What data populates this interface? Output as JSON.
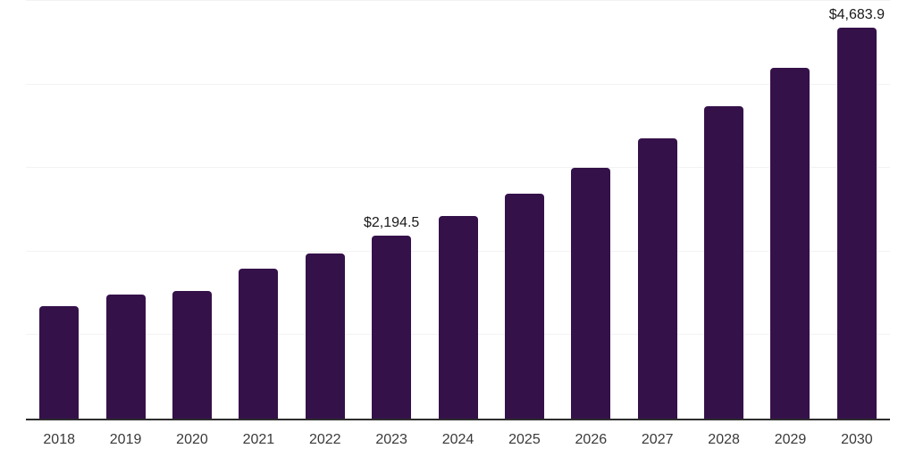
{
  "chart_data": {
    "type": "bar",
    "title": "",
    "xlabel": "",
    "ylabel": "",
    "categories": [
      "2018",
      "2019",
      "2020",
      "2021",
      "2022",
      "2023",
      "2024",
      "2025",
      "2026",
      "2027",
      "2028",
      "2029",
      "2030"
    ],
    "values": [
      1350,
      1480,
      1530,
      1795,
      1975,
      2194.5,
      2425,
      2690,
      3000,
      3355,
      3740,
      4200,
      4683.9
    ],
    "data_labels": {
      "2023": "$2,194.5",
      "2030": "$4,683.9"
    },
    "ylim": [
      0,
      5000
    ],
    "gridline_values": [
      1000,
      2000,
      3000,
      4000,
      5000
    ],
    "grid": true,
    "legend": false,
    "colors": {
      "bar": "#35114a",
      "gridline": "#f2f2f2",
      "axis_line": "#2e2e2e",
      "data_label": "#1a1a1a",
      "tick_label": "#3a3a3a"
    }
  }
}
